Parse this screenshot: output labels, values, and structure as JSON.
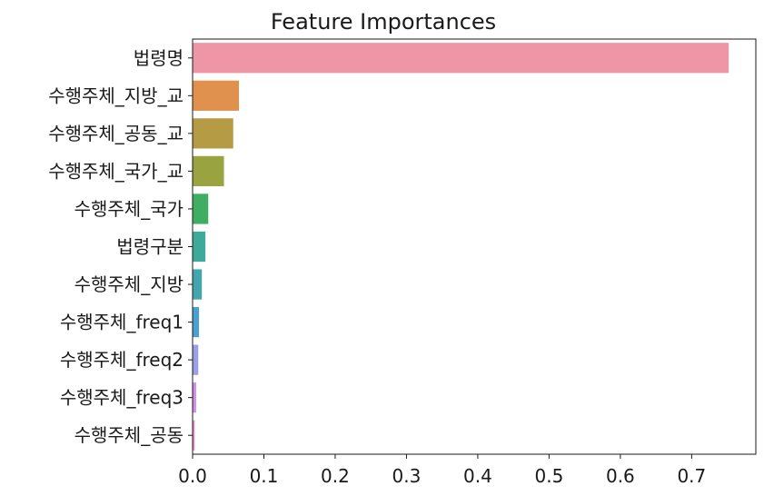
{
  "chart_data": {
    "type": "bar",
    "orientation": "horizontal",
    "title": "Feature Importances",
    "xlabel": "",
    "ylabel": "",
    "xlim": [
      0,
      0.79
    ],
    "x_ticks": [
      0.0,
      0.1,
      0.2,
      0.3,
      0.4,
      0.5,
      0.6,
      0.7
    ],
    "x_tick_labels": [
      "0.0",
      "0.1",
      "0.2",
      "0.3",
      "0.4",
      "0.5",
      "0.6",
      "0.7"
    ],
    "grid": false,
    "categories": [
      "법령명",
      "수행주체_지방_교",
      "수행주체_공동_교",
      "수행주체_국가_교",
      "수행주체_국가",
      "법령구분",
      "수행주체_지방",
      "수행주체_freq1",
      "수행주체_freq2",
      "수행주체_freq3",
      "수행주체_공동"
    ],
    "values": [
      0.752,
      0.065,
      0.057,
      0.044,
      0.022,
      0.018,
      0.013,
      0.009,
      0.008,
      0.005,
      0.003
    ],
    "colors": [
      "#ee96a5",
      "#e0914d",
      "#b59c44",
      "#99a33f",
      "#3fae62",
      "#3fa99a",
      "#43a6ae",
      "#4aa0d0",
      "#9c9ee8",
      "#d18fe6",
      "#ee8fcc"
    ]
  }
}
